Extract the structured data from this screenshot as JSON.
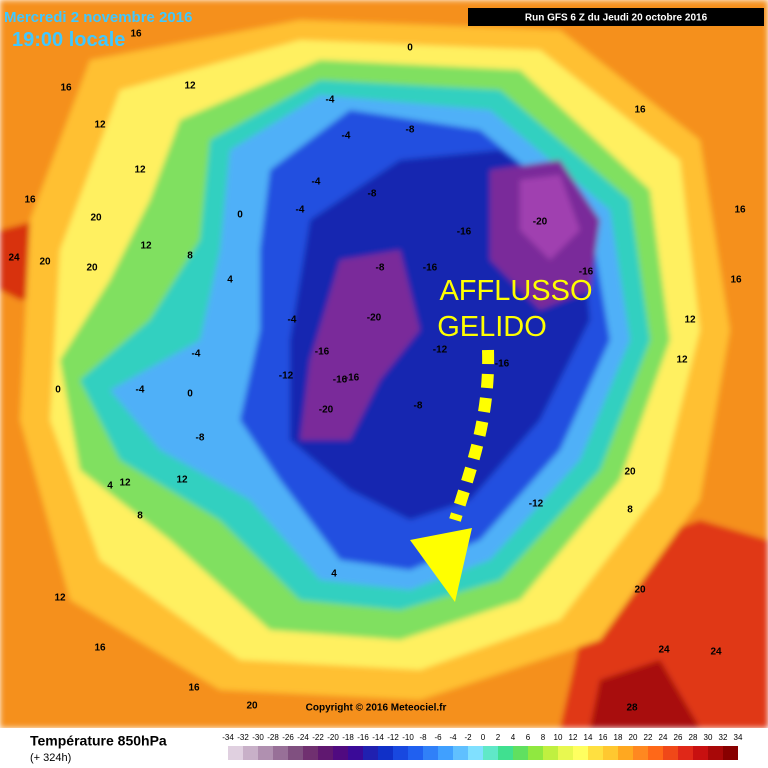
{
  "header": {
    "date": "Mercredi 2 novembre 2016",
    "time": "19:00 locale",
    "run": "Run GFS 6 Z du Jeudi 20 octobre 2016"
  },
  "annotation": {
    "line1": "AFFLUSSO",
    "line2": "GELIDO"
  },
  "copyright": "Copyright © 2016 Meteociel.fr",
  "footer": {
    "title": "Température 850hPa",
    "lead": "(+ 324h)"
  },
  "legend": {
    "ticks": [
      -34,
      -32,
      -30,
      -28,
      -26,
      -24,
      -22,
      -20,
      -18,
      -16,
      -14,
      -12,
      -10,
      -8,
      -6,
      -4,
      -2,
      0,
      2,
      4,
      6,
      8,
      10,
      12,
      14,
      16,
      18,
      20,
      22,
      24,
      26,
      28,
      30,
      32,
      34
    ],
    "colors": [
      "#e0d0e0",
      "#c8b0c8",
      "#b090b0",
      "#987098",
      "#805080",
      "#703070",
      "#601870",
      "#500a80",
      "#3a0a98",
      "#2020b0",
      "#1030c8",
      "#1848e0",
      "#2060f0",
      "#3080f8",
      "#40a0ff",
      "#60c0ff",
      "#80e0ff",
      "#60e8c8",
      "#40e090",
      "#60e060",
      "#90e840",
      "#c0f040",
      "#e8f850",
      "#ffff60",
      "#ffe040",
      "#ffc830",
      "#ffa820",
      "#ff8820",
      "#ff6818",
      "#f04818",
      "#e02818",
      "#c81010",
      "#a80808",
      "#880000"
    ]
  },
  "map": {
    "labels": [
      "16",
      "16",
      "12",
      "12",
      "16",
      "12",
      "20",
      "20",
      "24",
      "20",
      "12",
      "8",
      "4",
      "0",
      "-4",
      "-4",
      "-8",
      "-8",
      "-8",
      "-4",
      "-16",
      "-16",
      "-20",
      "-16",
      "-16",
      "-20",
      "-16",
      "-20",
      "-16",
      "-12",
      "-12",
      "-16",
      "-8",
      "-12",
      "-4",
      "-8",
      "-4",
      "0",
      "4",
      "8",
      "12",
      "12",
      "12",
      "16",
      "16",
      "20",
      "20",
      "24",
      "24",
      "28",
      "0",
      "-4",
      "-4",
      "0",
      "4",
      "12",
      "16",
      "20",
      "8",
      "16",
      "12",
      "16"
    ]
  }
}
